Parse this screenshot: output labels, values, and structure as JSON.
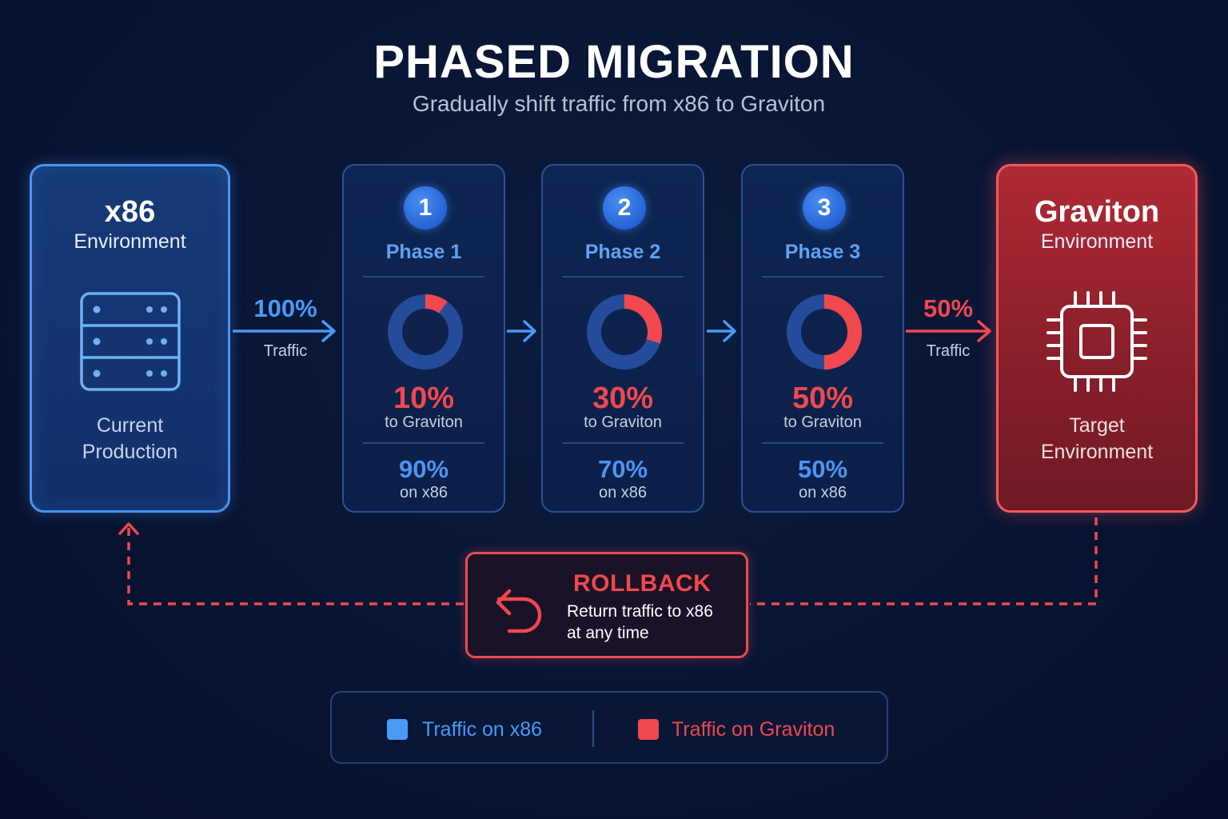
{
  "title": "PHASED MIGRATION",
  "subtitle": "Gradually shift traffic from x86 to Graviton",
  "source_env": {
    "name": "x86",
    "subtitle": "Environment",
    "footer_line1": "Current",
    "footer_line2": "Production",
    "icon": "server-rack-icon"
  },
  "target_env": {
    "name": "Graviton",
    "subtitle": "Environment",
    "footer_line1": "Target",
    "footer_line2": "Environment",
    "icon": "cpu-chip-icon"
  },
  "inbound_arrow": {
    "value": "100%",
    "label": "Traffic"
  },
  "outbound_arrow": {
    "value": "50%",
    "label": "Traffic"
  },
  "phases": [
    {
      "number": "1",
      "name": "Phase 1",
      "graviton_pct": "10%",
      "graviton_label": "to Graviton",
      "x86_pct": "90%",
      "x86_label": "on x86",
      "graviton_fraction": 0.1
    },
    {
      "number": "2",
      "name": "Phase 2",
      "graviton_pct": "30%",
      "graviton_label": "to Graviton",
      "x86_pct": "70%",
      "x86_label": "on x86",
      "graviton_fraction": 0.3
    },
    {
      "number": "3",
      "name": "Phase 3",
      "graviton_pct": "50%",
      "graviton_label": "to Graviton",
      "x86_pct": "50%",
      "x86_label": "on x86",
      "graviton_fraction": 0.5
    }
  ],
  "rollback": {
    "title": "ROLLBACK",
    "line1": "Return traffic to x86",
    "line2": "at any time",
    "icon": "undo-arrow-icon"
  },
  "legend": [
    {
      "label": "Traffic on x86",
      "color": "#4a9af5"
    },
    {
      "label": "Traffic on Graviton",
      "color": "#f0484e"
    }
  ],
  "colors": {
    "x86": "#4a9af5",
    "graviton": "#f0484e",
    "donut_track": "#244c9a"
  }
}
